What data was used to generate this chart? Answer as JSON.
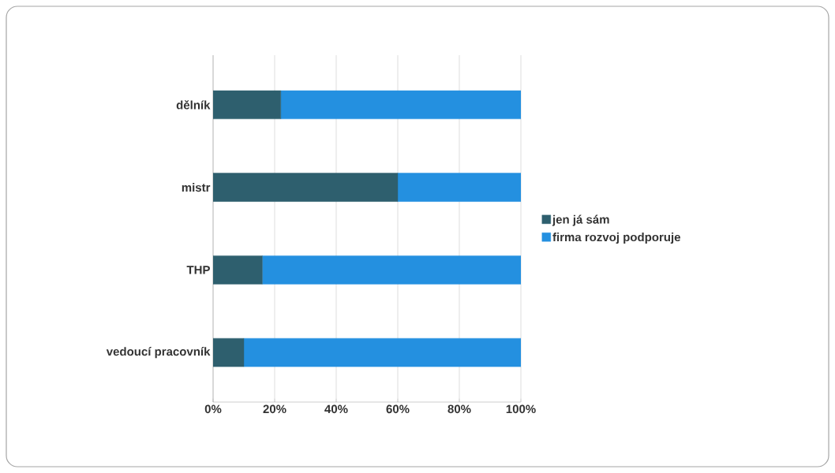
{
  "chart_data": {
    "type": "bar",
    "orientation": "horizontal",
    "stacked": true,
    "categories": [
      "dělník",
      "mistr",
      "THP",
      "vedoucí pracovník"
    ],
    "series": [
      {
        "name": "jen já sám",
        "color": "#2e5f6e",
        "values": [
          22,
          60,
          16,
          10
        ]
      },
      {
        "name": "firma rozvoj podporuje",
        "color": "#2490e0",
        "values": [
          78,
          40,
          84,
          90
        ]
      }
    ],
    "xlim": [
      0,
      100
    ],
    "xticks": [
      {
        "value": 0,
        "label": "0%"
      },
      {
        "value": 20,
        "label": "20%"
      },
      {
        "value": 40,
        "label": "40%"
      },
      {
        "value": 60,
        "label": "60%"
      },
      {
        "value": 80,
        "label": "80%"
      },
      {
        "value": 100,
        "label": "100%"
      }
    ],
    "grid": "x",
    "legend": "right"
  }
}
